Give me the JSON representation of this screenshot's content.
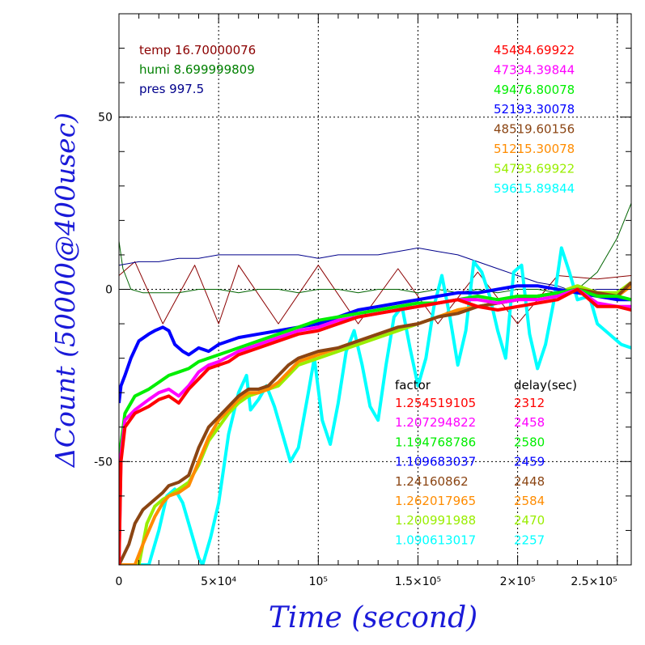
{
  "chart_data": {
    "type": "line",
    "xlabel": "Time (second)",
    "ylabel": "ΔCount (50000@400usec)",
    "xlim": [
      0,
      257000
    ],
    "ylim": [
      -80,
      80
    ],
    "x_ticks": [
      {
        "value": 0,
        "label": "0"
      },
      {
        "value": 50000,
        "label": "5×10⁴"
      },
      {
        "value": 100000,
        "label": "10⁵"
      },
      {
        "value": 150000,
        "label": "1.5×10⁵"
      },
      {
        "value": 200000,
        "label": "2×10⁵"
      },
      {
        "value": 250000,
        "label": "2.5×10⁵"
      }
    ],
    "y_ticks": [
      {
        "value": 50,
        "label": "50"
      },
      {
        "value": 0,
        "label": "0"
      },
      {
        "value": -50,
        "label": "-50"
      }
    ],
    "grid": true,
    "env_legend": [
      {
        "label": "temp 16.70000076",
        "color": "#8b0000"
      },
      {
        "label": "humi 8.699999809",
        "color": "#008000"
      },
      {
        "label": "pres 997.5",
        "color": "#00008b"
      }
    ],
    "legend_header": {
      "factor": "factor",
      "delay": "delay(sec)"
    },
    "series": [
      {
        "name": "45484.69922",
        "color": "#ff0000",
        "factor": "1.254519105",
        "delay": "2312",
        "x": [
          0,
          1000,
          3000,
          8000,
          15000,
          20000,
          25000,
          30000,
          35000,
          40000,
          45000,
          50000,
          55000,
          60000,
          70000,
          80000,
          90000,
          100000,
          110000,
          120000,
          130000,
          140000,
          150000,
          160000,
          170000,
          180000,
          190000,
          200000,
          210000,
          220000,
          230000,
          240000,
          250000,
          257000
        ],
        "y": [
          -80,
          -50,
          -40,
          -36,
          -34,
          -32,
          -31,
          -33,
          -29,
          -26,
          -23,
          -22,
          -21,
          -19,
          -17,
          -15,
          -13,
          -12,
          -10,
          -8,
          -7,
          -6,
          -5,
          -4,
          -3,
          -5,
          -6,
          -5,
          -4,
          -3,
          0,
          -5,
          -5,
          -6
        ]
      },
      {
        "name": "47334.39844",
        "color": "#ff00ff",
        "factor": "1.207294822",
        "delay": "2458",
        "x": [
          0,
          1000,
          3000,
          8000,
          15000,
          20000,
          25000,
          30000,
          35000,
          40000,
          45000,
          50000,
          60000,
          70000,
          80000,
          90000,
          100000,
          110000,
          120000,
          130000,
          140000,
          150000,
          160000,
          170000,
          180000,
          190000,
          200000,
          210000,
          220000,
          230000,
          240000,
          250000,
          257000
        ],
        "y": [
          -80,
          -48,
          -38,
          -35,
          -32,
          -30,
          -29,
          -31,
          -28,
          -24,
          -22,
          -21,
          -18,
          -16,
          -14,
          -12,
          -11,
          -9,
          -8,
          -7,
          -6,
          -5,
          -4,
          -3,
          -3,
          -4,
          -3,
          -3,
          -2,
          0,
          -4,
          -5,
          -5
        ]
      },
      {
        "name": "49476.80078",
        "color": "#00ee00",
        "factor": "1.194768786",
        "delay": "2580",
        "x": [
          0,
          1000,
          3000,
          8000,
          15000,
          20000,
          25000,
          30000,
          35000,
          40000,
          45000,
          50000,
          60000,
          70000,
          80000,
          90000,
          100000,
          110000,
          120000,
          130000,
          140000,
          150000,
          160000,
          170000,
          180000,
          190000,
          200000,
          210000,
          220000,
          230000,
          240000,
          250000,
          257000
        ],
        "y": [
          -72,
          -45,
          -36,
          -31,
          -29,
          -27,
          -25,
          -24,
          -23,
          -21,
          -20,
          -19,
          -17,
          -15,
          -13,
          -11,
          -9,
          -8,
          -7,
          -6,
          -5,
          -4,
          -4,
          -3,
          -2,
          -3,
          -2,
          -2,
          -1,
          0,
          -2,
          -2,
          -3
        ]
      },
      {
        "name": "52193.30078",
        "color": "#0000ff",
        "factor": "1.109683037",
        "delay": "2459",
        "x": [
          0,
          1000,
          3000,
          6000,
          10000,
          15000,
          18000,
          22000,
          25000,
          28000,
          32000,
          35000,
          40000,
          45000,
          50000,
          60000,
          70000,
          80000,
          90000,
          100000,
          110000,
          120000,
          130000,
          140000,
          150000,
          160000,
          170000,
          180000,
          190000,
          200000,
          210000,
          220000,
          230000,
          240000,
          250000,
          257000
        ],
        "y": [
          -33,
          -28,
          -25,
          -20,
          -15,
          -13,
          -12,
          -11,
          -12,
          -16,
          -18,
          -19,
          -17,
          -18,
          -16,
          -14,
          -13,
          -12,
          -11,
          -10,
          -8,
          -6,
          -5,
          -4,
          -3,
          -2,
          -1,
          -1,
          0,
          1,
          1,
          0,
          -1,
          -2,
          -3,
          -3
        ]
      },
      {
        "name": "48519.60156",
        "color": "#8b4513",
        "factor": "1.24160862",
        "delay": "2448",
        "x": [
          0,
          5000,
          8000,
          12000,
          18000,
          22000,
          25000,
          30000,
          35000,
          40000,
          45000,
          50000,
          55000,
          60000,
          65000,
          70000,
          75000,
          80000,
          85000,
          90000,
          100000,
          110000,
          120000,
          130000,
          140000,
          150000,
          160000,
          170000,
          180000,
          190000,
          200000,
          210000,
          220000,
          230000,
          240000,
          250000,
          257000
        ],
        "y": [
          -80,
          -74,
          -68,
          -64,
          -61,
          -59,
          -57,
          -56,
          -54,
          -46,
          -40,
          -37,
          -34,
          -31,
          -29,
          -29,
          -28,
          -25,
          -22,
          -20,
          -18,
          -17,
          -15,
          -13,
          -11,
          -10,
          -8,
          -7,
          -5,
          -4,
          -3,
          -2,
          -1,
          0,
          -1,
          -2,
          2
        ]
      },
      {
        "name": "51215.30078",
        "color": "#ff8c00",
        "factor": "1.262017965",
        "delay": "2584",
        "x": [
          0,
          8000,
          12000,
          18000,
          22000,
          25000,
          30000,
          35000,
          40000,
          45000,
          50000,
          55000,
          60000,
          65000,
          70000,
          75000,
          80000,
          85000,
          90000,
          100000,
          110000,
          120000,
          130000,
          140000,
          150000,
          160000,
          170000,
          180000,
          190000,
          200000,
          210000,
          220000,
          230000,
          240000,
          250000,
          257000
        ],
        "y": [
          -80,
          -80,
          -74,
          -66,
          -62,
          -60,
          -59,
          -57,
          -50,
          -43,
          -38,
          -35,
          -32,
          -30,
          -30,
          -29,
          -27,
          -24,
          -21,
          -19,
          -17,
          -15,
          -13,
          -11,
          -10,
          -8,
          -6,
          -5,
          -4,
          -3,
          -2,
          -1,
          0,
          -1,
          -2,
          1
        ]
      },
      {
        "name": "54793.69922",
        "color": "#99ee00",
        "factor": "1.200991988",
        "delay": "2470",
        "x": [
          0,
          10000,
          14000,
          18000,
          22000,
          25000,
          30000,
          35000,
          40000,
          45000,
          50000,
          55000,
          60000,
          65000,
          70000,
          75000,
          80000,
          85000,
          90000,
          100000,
          110000,
          120000,
          130000,
          140000,
          150000,
          160000,
          170000,
          180000,
          190000,
          200000,
          210000,
          220000,
          230000,
          240000,
          250000,
          257000
        ],
        "y": [
          -80,
          -80,
          -68,
          -63,
          -61,
          -60,
          -58,
          -56,
          -51,
          -44,
          -40,
          -36,
          -33,
          -31,
          -30,
          -29,
          -28,
          -25,
          -22,
          -20,
          -18,
          -16,
          -14,
          -12,
          -10,
          -8,
          -6,
          -5,
          -4,
          -3,
          -2,
          -1,
          1,
          -1,
          -1,
          2
        ]
      },
      {
        "name": "59615.89844",
        "color": "#00ffff",
        "factor": "1.090613017",
        "delay": "2257",
        "x": [
          0,
          15000,
          20000,
          24000,
          28000,
          32000,
          36000,
          40000,
          42000,
          46000,
          50000,
          55000,
          60000,
          64000,
          66000,
          70000,
          74000,
          78000,
          82000,
          86000,
          90000,
          95000,
          98000,
          102000,
          106000,
          110000,
          114000,
          118000,
          122000,
          126000,
          130000,
          134000,
          138000,
          142000,
          146000,
          150000,
          154000,
          158000,
          162000,
          166000,
          170000,
          174000,
          178000,
          182000,
          186000,
          190000,
          194000,
          198000,
          202000,
          206000,
          210000,
          214000,
          218000,
          222000,
          226000,
          230000,
          236000,
          240000,
          244000,
          248000,
          252000,
          257000
        ],
        "y": [
          -80,
          -80,
          -70,
          -60,
          -58,
          -62,
          -70,
          -78,
          -80,
          -72,
          -62,
          -42,
          -30,
          -25,
          -35,
          -32,
          -28,
          -34,
          -42,
          -50,
          -46,
          -30,
          -20,
          -38,
          -45,
          -33,
          -18,
          -12,
          -22,
          -34,
          -38,
          -22,
          -8,
          -5,
          -17,
          -28,
          -20,
          -5,
          4,
          -8,
          -22,
          -12,
          8,
          5,
          -2,
          -12,
          -20,
          5,
          7,
          -13,
          -23,
          -16,
          -4,
          12,
          5,
          -3,
          -2,
          -10,
          -12,
          -14,
          -16,
          -17
        ]
      },
      {
        "name": "temp 16.70000076",
        "color": "#8b0000",
        "line_width": 1,
        "x": [
          0,
          8000,
          22000,
          38000,
          50000,
          60000,
          80000,
          100000,
          120000,
          140000,
          160000,
          180000,
          200000,
          220000,
          240000,
          257000
        ],
        "y": [
          4,
          8,
          -10,
          7,
          -10,
          7,
          -10,
          7,
          -10,
          6,
          -10,
          5,
          -10,
          4,
          3,
          4
        ]
      },
      {
        "name": "humi 8.699999809",
        "color": "#006400",
        "line_width": 1,
        "x": [
          0,
          2000,
          6000,
          12000,
          20000,
          30000,
          40000,
          50000,
          60000,
          70000,
          80000,
          90000,
          100000,
          110000,
          120000,
          130000,
          140000,
          150000,
          160000,
          170000,
          180000,
          190000,
          200000,
          210000,
          220000,
          230000,
          240000,
          250000,
          257000
        ],
        "y": [
          14,
          6,
          0,
          -1,
          -1,
          -1,
          0,
          0,
          -1,
          0,
          0,
          -1,
          0,
          0,
          -1,
          0,
          0,
          -1,
          0,
          -1,
          0,
          -1,
          0,
          0,
          -1,
          0,
          5,
          15,
          25
        ]
      },
      {
        "name": "pres 997.5",
        "color": "#00008b",
        "line_width": 1,
        "x": [
          0,
          10000,
          20000,
          30000,
          40000,
          50000,
          60000,
          70000,
          80000,
          90000,
          100000,
          110000,
          120000,
          130000,
          140000,
          150000,
          160000,
          170000,
          180000,
          190000,
          200000,
          210000,
          220000,
          230000,
          240000,
          250000,
          257000
        ],
        "y": [
          7,
          8,
          8,
          9,
          9,
          10,
          10,
          10,
          10,
          10,
          9,
          10,
          10,
          10,
          11,
          12,
          11,
          10,
          8,
          6,
          4,
          2,
          1,
          -1,
          0,
          0,
          0
        ]
      }
    ]
  }
}
